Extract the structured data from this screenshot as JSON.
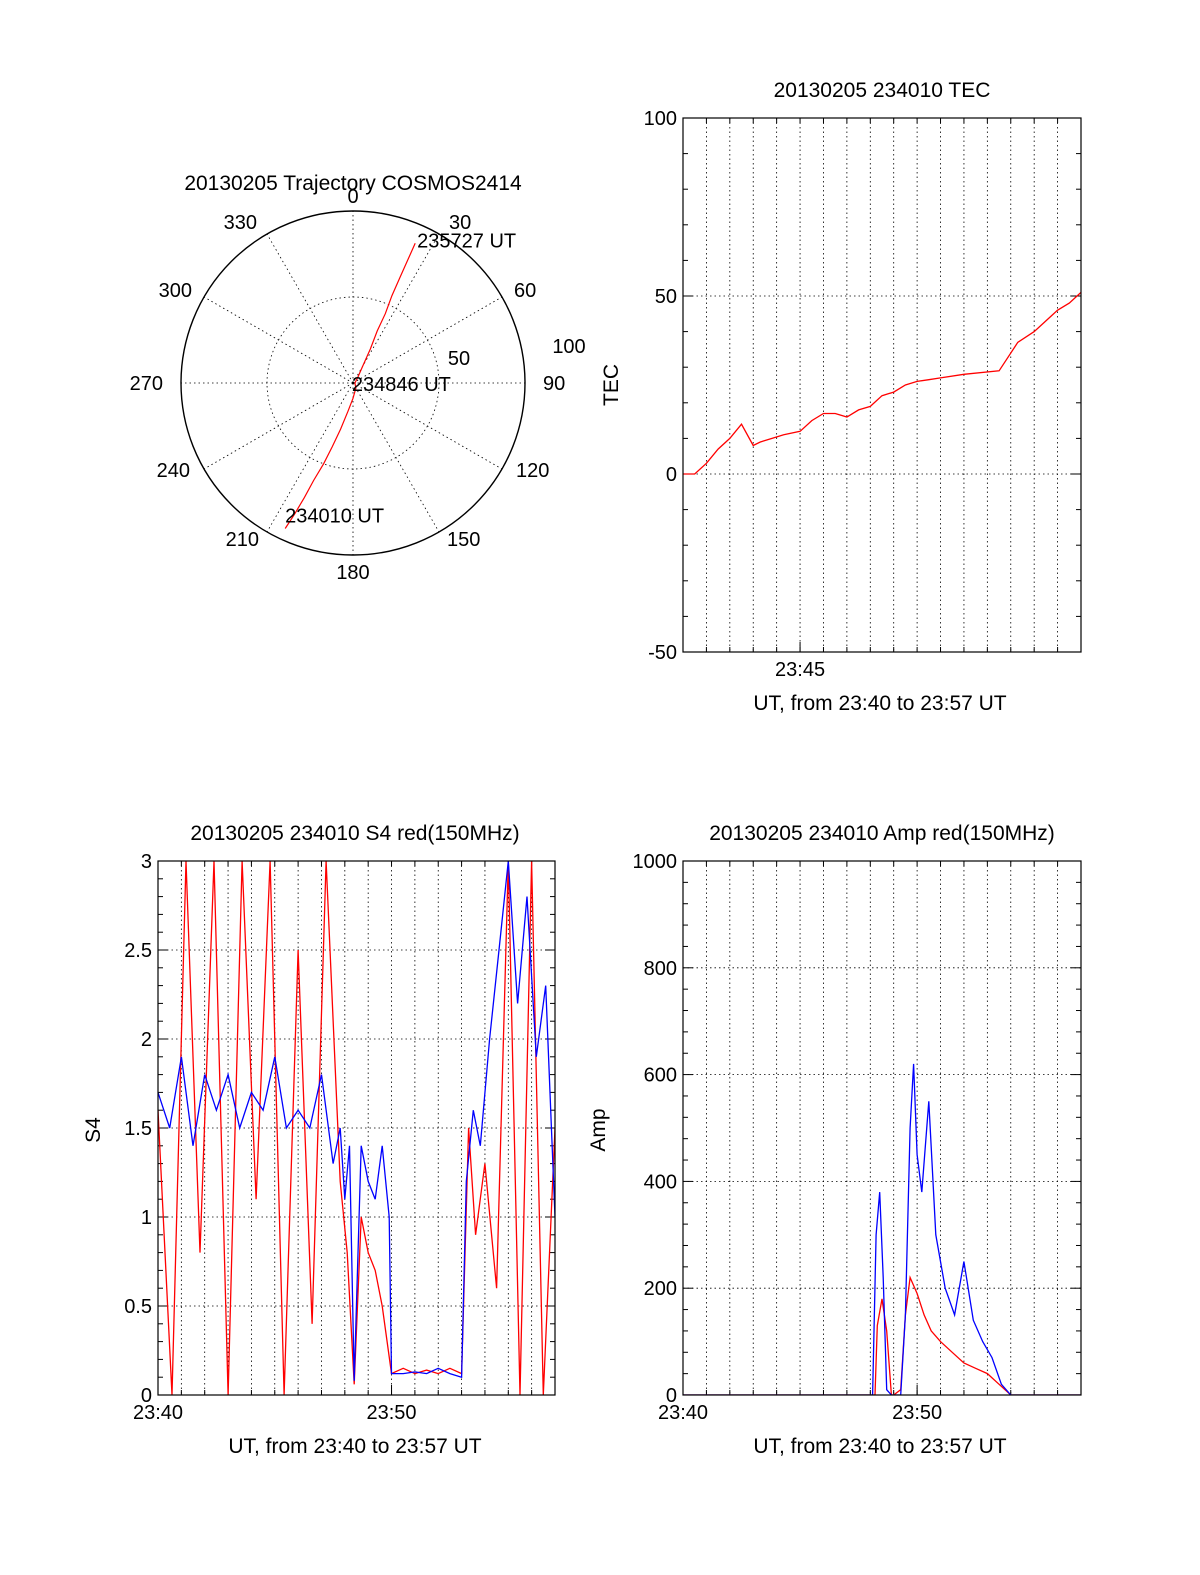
{
  "chart_data": [
    {
      "id": "trajectory",
      "type": "polar",
      "title": "20130205 Trajectory COSMOS2414",
      "azimuth_labels": [
        "0",
        "30",
        "60",
        "90",
        "120",
        "150",
        "180",
        "210",
        "240",
        "270",
        "300",
        "330"
      ],
      "radial_labels": [
        "50",
        "100"
      ],
      "track": [
        {
          "az": 205,
          "el": 6
        },
        {
          "az": 204,
          "el": 15
        },
        {
          "az": 203,
          "el": 25
        },
        {
          "az": 202,
          "el": 35
        },
        {
          "az": 200,
          "el": 45
        },
        {
          "az": 198,
          "el": 55
        },
        {
          "az": 195,
          "el": 65
        },
        {
          "az": 190,
          "el": 75
        },
        {
          "az": 180,
          "el": 82
        },
        {
          "az": 150,
          "el": 87
        },
        {
          "az": 90,
          "el": 89
        },
        {
          "az": 40,
          "el": 86
        },
        {
          "az": 30,
          "el": 80
        },
        {
          "az": 27,
          "el": 70
        },
        {
          "az": 25,
          "el": 60
        },
        {
          "az": 25,
          "el": 50
        },
        {
          "az": 24,
          "el": 40
        },
        {
          "az": 24,
          "el": 30
        },
        {
          "az": 24,
          "el": 20
        },
        {
          "az": 24,
          "el": 10
        }
      ],
      "track_color": "#ff0000",
      "annotations": [
        {
          "text": "235727 UT",
          "az": 24,
          "el": 10
        },
        {
          "text": "234846 UT",
          "az": 90,
          "el": 89
        },
        {
          "text": "234010 UT",
          "az": 205,
          "el": 6
        }
      ]
    },
    {
      "id": "tec",
      "type": "line",
      "title": "20130205 234010 TEC",
      "xlabel": "UT, from 23:40 to 23:57 UT",
      "ylabel": "TEC",
      "xlim": [
        0,
        17
      ],
      "ylim": [
        -50,
        100
      ],
      "xticks": [
        {
          "x": 5,
          "label": "23:45"
        }
      ],
      "yticks": [
        -50,
        0,
        50,
        100
      ],
      "grid": true,
      "series": [
        {
          "color": "#ff0000",
          "x": [
            0,
            0.5,
            1,
            1.5,
            2,
            2.5,
            3,
            3.3,
            3.8,
            4.3,
            5,
            5.5,
            6,
            6.5,
            7,
            7.5,
            8,
            8.5,
            9,
            9.5,
            10,
            10.5,
            11,
            12,
            13.5,
            14.3,
            15,
            15.5,
            16,
            16.5,
            17
          ],
          "y": [
            0,
            0,
            3,
            7,
            10,
            14,
            8,
            9,
            10,
            11,
            12,
            15,
            17,
            17,
            16,
            18,
            19,
            22,
            23,
            25,
            26,
            26.5,
            27,
            28,
            29,
            37,
            40,
            43,
            46,
            48,
            51
          ]
        }
      ]
    },
    {
      "id": "s4",
      "type": "line",
      "title": "20130205 234010 S4 red(150MHz)",
      "xlabel": "UT, from 23:40 to 23:57 UT",
      "ylabel": "S4",
      "xlim": [
        0,
        17
      ],
      "ylim": [
        0,
        3
      ],
      "xticks": [
        {
          "x": 0,
          "label": "23:40"
        },
        {
          "x": 10,
          "label": "23:50"
        }
      ],
      "yticks": [
        "0",
        "0.5",
        "1",
        "1.5",
        "2",
        "2.5",
        "3"
      ],
      "grid": true,
      "series": [
        {
          "color": "#ff0000",
          "x": [
            0,
            0.6,
            1.2,
            1.8,
            2.4,
            3,
            3.6,
            4.2,
            4.8,
            5.4,
            6,
            6.6,
            7.2,
            7.8,
            8.1,
            8.4,
            8.7,
            9.0,
            9.3,
            9.6,
            10.0,
            10.5,
            11,
            11.5,
            12,
            12.5,
            13.0,
            13.3,
            13.6,
            14.0,
            14.5,
            15.0,
            15.5,
            16.0,
            16.5,
            17.0
          ],
          "y": [
            1.6,
            0,
            3,
            0.8,
            3,
            0,
            3,
            1.1,
            3,
            0,
            2.5,
            0.4,
            3,
            1.2,
            0.8,
            0.06,
            1.0,
            0.8,
            0.7,
            0.5,
            0.12,
            0.15,
            0.12,
            0.14,
            0.12,
            0.15,
            0.12,
            1.5,
            0.9,
            1.3,
            0.6,
            3,
            0,
            3,
            0,
            1.5
          ]
        },
        {
          "color": "#0000ff",
          "x": [
            0,
            0.5,
            1,
            1.5,
            2,
            2.5,
            3,
            3.5,
            4,
            4.5,
            5,
            5.5,
            6,
            6.5,
            7,
            7.5,
            7.8,
            8.0,
            8.2,
            8.4,
            8.7,
            9.0,
            9.3,
            9.6,
            9.9,
            10.0,
            10.5,
            11,
            11.5,
            12,
            12.5,
            13.0,
            13.2,
            13.5,
            13.8,
            14.2,
            14.6,
            15.0,
            15.4,
            15.8,
            16.2,
            16.6,
            17.0
          ],
          "y": [
            1.7,
            1.5,
            1.9,
            1.4,
            1.8,
            1.6,
            1.8,
            1.5,
            1.7,
            1.6,
            1.9,
            1.5,
            1.6,
            1.5,
            1.8,
            1.3,
            1.5,
            1.1,
            1.4,
            0.08,
            1.4,
            1.2,
            1.1,
            1.4,
            1.0,
            0.12,
            0.12,
            0.13,
            0.12,
            0.15,
            0.12,
            0.1,
            1.2,
            1.6,
            1.4,
            2.0,
            2.5,
            3,
            2.2,
            2.8,
            1.9,
            2.3,
            1.0
          ]
        }
      ]
    },
    {
      "id": "amp",
      "type": "line",
      "title": "20130205 234010 Amp red(150MHz)",
      "xlabel": "UT, from 23:40 to 23:57 UT",
      "ylabel": "Amp",
      "xlim": [
        0,
        17
      ],
      "ylim": [
        0,
        1000
      ],
      "xticks": [
        {
          "x": 0,
          "label": "23:40"
        },
        {
          "x": 10,
          "label": "23:50"
        }
      ],
      "yticks": [
        0,
        200,
        400,
        600,
        800,
        1000
      ],
      "grid": true,
      "series": [
        {
          "color": "#ff0000",
          "x": [
            0,
            8.2,
            8.3,
            8.5,
            8.7,
            8.9,
            9.0,
            9.3,
            9.5,
            9.7,
            10.0,
            10.3,
            10.6,
            11.0,
            11.5,
            12.0,
            12.5,
            13.0,
            13.5,
            14.0,
            17.0
          ],
          "y": [
            0,
            0,
            130,
            180,
            120,
            0,
            0,
            10,
            150,
            220,
            190,
            150,
            120,
            100,
            80,
            60,
            50,
            40,
            20,
            0,
            0
          ]
        },
        {
          "color": "#0000ff",
          "x": [
            0,
            8.1,
            8.25,
            8.4,
            8.55,
            8.7,
            8.9,
            9.3,
            9.5,
            9.7,
            9.85,
            10.0,
            10.2,
            10.5,
            10.8,
            11.0,
            11.2,
            11.6,
            12.0,
            12.4,
            12.8,
            13.2,
            13.6,
            14.0,
            17.0
          ],
          "y": [
            0,
            0,
            300,
            380,
            220,
            10,
            0,
            0,
            150,
            500,
            620,
            450,
            380,
            550,
            300,
            250,
            200,
            150,
            250,
            140,
            100,
            70,
            20,
            0,
            0
          ]
        }
      ]
    }
  ]
}
